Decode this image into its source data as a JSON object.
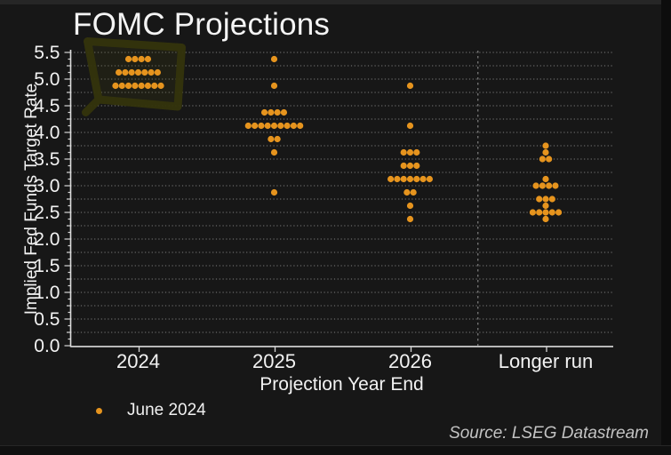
{
  "window": {
    "background": "#171717"
  },
  "chart": {
    "title": "FOMC Projections",
    "ylabel": "Implied Fed Funds Target Rate",
    "xlabel": "Projection Year End",
    "source": "Source: LSEG Datastream",
    "legend": {
      "label": "June 2024",
      "marker_color": "#E6941E"
    }
  },
  "chart_data": {
    "type": "scatter",
    "subtype": "fomc-dot-plot",
    "title": "FOMC Projections",
    "xlabel": "Projection Year End",
    "ylabel": "Implied Fed Funds Target Rate",
    "categories": [
      "2024",
      "2025",
      "2026",
      "Longer run"
    ],
    "ylim": [
      0.0,
      5.5
    ],
    "ytick_labels": [
      "0.0",
      "0.5",
      "1.0",
      "1.5",
      "2.0",
      "2.5",
      "3.0",
      "3.5",
      "4.0",
      "4.5",
      "5.0",
      "5.5"
    ],
    "grid": "dotted horizontal lines every 0.25",
    "grid_step": 0.25,
    "legend_position": "below-left",
    "legend_label": "June 2024",
    "dot_color": "#E6941E",
    "separator_before_category": "Longer run",
    "series": [
      {
        "name": "June 2024",
        "dots_by_category": {
          "2024": [
            {
              "rate": 5.375,
              "count": 4
            },
            {
              "rate": 5.125,
              "count": 7
            },
            {
              "rate": 4.875,
              "count": 8
            }
          ],
          "2025": [
            {
              "rate": 5.375,
              "count": 1
            },
            {
              "rate": 4.875,
              "count": 1
            },
            {
              "rate": 4.375,
              "count": 4
            },
            {
              "rate": 4.125,
              "count": 9
            },
            {
              "rate": 3.875,
              "count": 2
            },
            {
              "rate": 3.625,
              "count": 1
            },
            {
              "rate": 2.875,
              "count": 1
            }
          ],
          "2026": [
            {
              "rate": 4.875,
              "count": 1
            },
            {
              "rate": 4.125,
              "count": 1
            },
            {
              "rate": 3.625,
              "count": 3
            },
            {
              "rate": 3.375,
              "count": 3
            },
            {
              "rate": 3.125,
              "count": 7
            },
            {
              "rate": 2.875,
              "count": 2
            },
            {
              "rate": 2.625,
              "count": 1
            },
            {
              "rate": 2.375,
              "count": 1
            }
          ],
          "Longer run": [
            {
              "rate": 3.75,
              "count": 1
            },
            {
              "rate": 3.625,
              "count": 1
            },
            {
              "rate": 3.5,
              "count": 2
            },
            {
              "rate": 3.125,
              "count": 1
            },
            {
              "rate": 3.0,
              "count": 4
            },
            {
              "rate": 2.75,
              "count": 3
            },
            {
              "rate": 2.625,
              "count": 1
            },
            {
              "rate": 2.5,
              "count": 5
            },
            {
              "rate": 2.375,
              "count": 1
            }
          ]
        }
      }
    ],
    "annotation": {
      "type": "hand-drawn-highlight-box",
      "around_category": "2024",
      "color": "#34340c"
    },
    "source": "Source: LSEG Datastream"
  }
}
